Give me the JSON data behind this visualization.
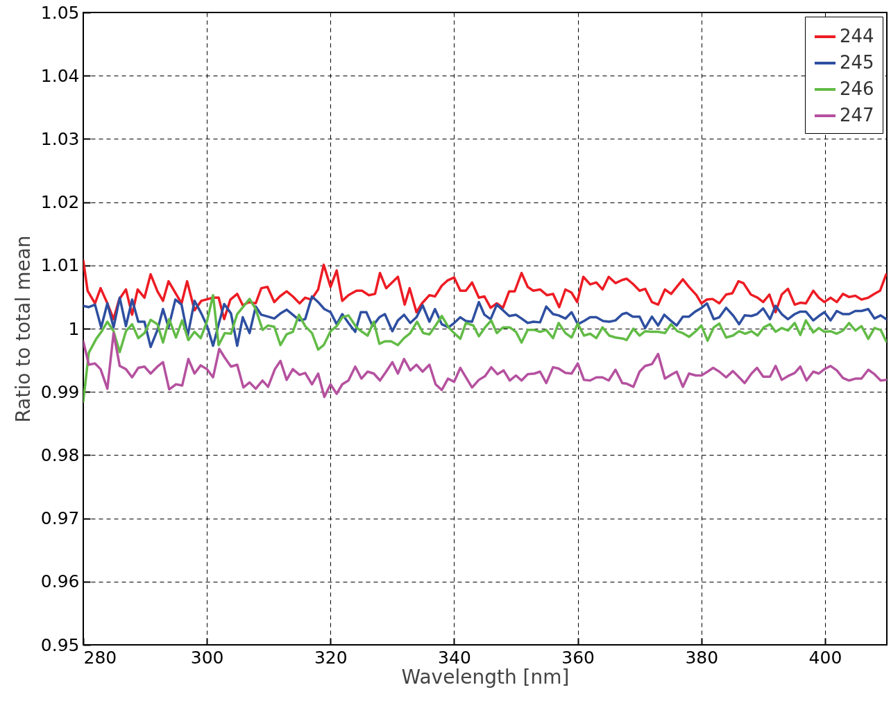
{
  "chart_data": {
    "type": "line",
    "xlabel": "Wavelength [nm]",
    "ylabel": "Ratio to total mean",
    "xlim": [
      280,
      410
    ],
    "xticks": [
      280,
      300,
      320,
      340,
      360,
      380,
      400
    ],
    "ylim": [
      0.95,
      1.05
    ],
    "yticks": [
      0.95,
      0.96,
      0.97,
      0.98,
      0.99,
      1,
      1.01,
      1.02,
      1.03,
      1.04,
      1.05
    ],
    "grid": true,
    "legend": "top right",
    "series": [
      {
        "name": "244",
        "color": "#ed1c24",
        "x": [
          280,
          280.7,
          281.9,
          282.8,
          283.9,
          284.9,
          285.8,
          286.9,
          287.9,
          288.8,
          289.9,
          290.9,
          292,
          292.9,
          293.8,
          295,
          295.9,
          296.8,
          298,
          299.1,
          301,
          301.9,
          302.8,
          303.8,
          304.9,
          305.8,
          306.8,
          307.9,
          308.8,
          309.8,
          310.9,
          311.8,
          312.9,
          313.9,
          315,
          315.9,
          316.9,
          318,
          318.9,
          320,
          321,
          321.9,
          322.9,
          324.2,
          325.1,
          326.2,
          327.2,
          328,
          329,
          330.9,
          332,
          332.8,
          333.9,
          334.8,
          336,
          336.9,
          338,
          338.9,
          340,
          341,
          341.9,
          342.9,
          344,
          344.9,
          345.9,
          346.9,
          347.9,
          348.9,
          349.8,
          350.9,
          351.9,
          352.8,
          353.9,
          355,
          356,
          357,
          358,
          359,
          359.9,
          360.9,
          362,
          363,
          364,
          365,
          366.1,
          367.2,
          367.9,
          368.9,
          370,
          370.9,
          372,
          373,
          374.1,
          375.1,
          376,
          377,
          378,
          379.2,
          380,
          380.9,
          381.8,
          382.9,
          384,
          385,
          386,
          386.8,
          388,
          389.1,
          390,
          391,
          392,
          393,
          394,
          395.1,
          396,
          396.9,
          398.1,
          399,
          399.9,
          400.9,
          401.9,
          402.9,
          403.9,
          404.9,
          405.9,
          407,
          408,
          408.9,
          409.9
        ],
        "values": [
          1.0108,
          1.006,
          1.004,
          1.0064,
          1.004,
          1.0015,
          1.0046,
          1.0062,
          1.0022,
          1.0062,
          1.0049,
          1.0086,
          1.0059,
          1.0044,
          1.0075,
          1.0055,
          1.004,
          1.0075,
          1.0029,
          1.0044,
          1.0049,
          1.0049,
          1.0015,
          1.0046,
          1.0055,
          1.0037,
          1.0042,
          1.004,
          1.0064,
          1.0066,
          1.0042,
          1.0051,
          1.0059,
          1.0051,
          1.004,
          1.0049,
          1.0046,
          1.0062,
          1.0101,
          1.0066,
          1.0092,
          1.0044,
          1.0053,
          1.006,
          1.006,
          1.0053,
          1.0055,
          1.0088,
          1.0064,
          1.0082,
          1.0038,
          1.0064,
          1.0026,
          1.004,
          1.0053,
          1.0051,
          1.0068,
          1.0076,
          1.0081,
          1.006,
          1.006,
          1.0073,
          1.0049,
          1.0051,
          1.0033,
          1.004,
          1.0033,
          1.0059,
          1.0059,
          1.0088,
          1.0066,
          1.006,
          1.0062,
          1.0053,
          1.0055,
          1.0034,
          1.0062,
          1.0057,
          1.0042,
          1.0082,
          1.007,
          1.0073,
          1.0062,
          1.0082,
          1.0072,
          1.0077,
          1.0079,
          1.0071,
          1.006,
          1.0063,
          1.0042,
          1.0038,
          1.0062,
          1.0055,
          1.0066,
          1.0078,
          1.0066,
          1.0053,
          1.004,
          1.0046,
          1.0047,
          1.004,
          1.0054,
          1.0056,
          1.0075,
          1.0072,
          1.0054,
          1.0049,
          1.0042,
          1.0054,
          1.0026,
          1.0054,
          1.0063,
          1.0038,
          1.0041,
          1.004,
          1.006,
          1.0049,
          1.0042,
          1.0049,
          1.0042,
          1.0055,
          1.005,
          1.0052,
          1.0046,
          1.0049,
          1.0055,
          1.006,
          1.0086
        ]
      },
      {
        "name": "245",
        "color": "#2e4fa0",
        "x": [
          280,
          280.9,
          281.9,
          282.9,
          283.9,
          284.9,
          285.9,
          286.9,
          287.9,
          288.9,
          289.9,
          290.9,
          292,
          292.9,
          293.8,
          294.9,
          295.9,
          296.9,
          298,
          299.1,
          300,
          301,
          301.9,
          302.8,
          303.9,
          304.9,
          305.8,
          306.9,
          307.9,
          308.8,
          309.9,
          310.9,
          311.9,
          312.9,
          313.9,
          315,
          315.9,
          317,
          318,
          319,
          320,
          321,
          321.9,
          322.9,
          324,
          324.9,
          325.8,
          326.8,
          327.9,
          328.8,
          330,
          330.9,
          331.9,
          332.9,
          333.9,
          334.9,
          336,
          336.9,
          338,
          339.1,
          340,
          341,
          341.9,
          342.9,
          344,
          344.9,
          345.9,
          346.9,
          347.9,
          348.9,
          350,
          350.9,
          351.9,
          352.8,
          353.9,
          354.9,
          356,
          356.9,
          358,
          359,
          360,
          361,
          362,
          363,
          364.1,
          365.1,
          366.1,
          367.2,
          367.9,
          368.9,
          370,
          370.9,
          372,
          373,
          374,
          375,
          376,
          377,
          378,
          379,
          379.9,
          380.9,
          382,
          382.9,
          384,
          385.2,
          386.1,
          387,
          388.1,
          389,
          390,
          391.1,
          392,
          393,
          394,
          395.1,
          396,
          396.9,
          398.1,
          399,
          399.9,
          400.9,
          401.9,
          402.9,
          403.9,
          404.9,
          405.9,
          407,
          408,
          409,
          409.9
        ],
        "values": [
          1.0036,
          1.0034,
          1.0038,
          1.0002,
          1.004,
          1.0002,
          1.0049,
          1.0004,
          1.0046,
          1.0011,
          1.0011,
          0.9971,
          0.9998,
          1.0031,
          1.0002,
          1.0046,
          1.0038,
          0.9989,
          1.0044,
          1.0024,
          1.0005,
          0.9973,
          1.0007,
          1.0039,
          1.0024,
          0.9973,
          1.0018,
          0.9993,
          1.0035,
          1.0022,
          1.0019,
          1.0016,
          1.0024,
          1.003,
          1.0022,
          1.0013,
          1.0015,
          1.0051,
          1.0042,
          1.0031,
          1.0026,
          1.0007,
          1.0023,
          1.0009,
          0.9995,
          1.0026,
          1.0026,
          1.0004,
          1.0018,
          1.0023,
          0.9996,
          1.0013,
          1.0022,
          1.0009,
          1.0018,
          1.0037,
          1.0011,
          1.0031,
          1.0007,
          1.0002,
          1.0009,
          1.0018,
          1.0012,
          1.0011,
          1.0042,
          1.0022,
          1.0015,
          1.0038,
          1.0029,
          1.002,
          1.0022,
          1.0016,
          1.0009,
          1.0011,
          1.001,
          1.0035,
          1.0023,
          1.0021,
          1.0016,
          1.0026,
          1.0007,
          1.0012,
          1.0018,
          1.0018,
          1.0012,
          1.0011,
          1.0013,
          1.0023,
          1.0025,
          1.0019,
          1.0019,
          1.0001,
          1.0019,
          1.0005,
          1.0022,
          1.0013,
          1.0005,
          1.0019,
          1.0019,
          1.0027,
          1.0032,
          1.004,
          1.0015,
          1.0018,
          1.0033,
          1.002,
          1.0007,
          1.0021,
          1.002,
          1.0023,
          1.0032,
          1.0015,
          1.0036,
          1.0023,
          1.0015,
          1.0023,
          1.0027,
          1.0027,
          1.0013,
          1.002,
          1.0026,
          1.0013,
          1.0028,
          1.0023,
          1.0023,
          1.0028,
          1.0028,
          1.0031,
          1.0016,
          1.0021,
          1.0015
        ]
      },
      {
        "name": "246",
        "color": "#62bb46",
        "x": [
          280,
          280.9,
          282.1,
          283,
          283.9,
          284.9,
          285.9,
          286.9,
          287.9,
          288.9,
          289.9,
          290.9,
          292,
          292.9,
          293.9,
          295,
          296,
          297,
          298,
          299,
          300,
          301,
          301.9,
          302.9,
          303.9,
          304.9,
          305.9,
          306.9,
          307.9,
          309,
          309.9,
          310.9,
          311.9,
          312.9,
          313.9,
          314.9,
          315.9,
          317,
          318,
          318.9,
          320,
          321,
          321.9,
          322.9,
          324.2,
          325.1,
          326,
          327,
          327.9,
          328.8,
          329.8,
          330.9,
          331.9,
          332.9,
          334,
          335,
          336,
          337,
          338,
          339.1,
          340,
          341,
          341.9,
          343.1,
          344,
          345,
          346,
          346.9,
          347.9,
          349,
          350,
          350.9,
          351.9,
          353,
          353.9,
          354.9,
          356,
          356.9,
          358,
          359,
          360,
          361,
          362,
          363,
          364,
          365.1,
          366.1,
          367.4,
          367.9,
          369,
          370,
          370.9,
          372,
          373,
          374.1,
          375.1,
          376.1,
          377,
          378,
          379.1,
          380,
          381,
          382,
          382.9,
          384,
          385.1,
          386.1,
          387.1,
          388.1,
          389.1,
          390.1,
          391.1,
          392,
          393,
          394,
          395.1,
          396,
          396.9,
          398.1,
          399,
          399.9,
          400.9,
          401.9,
          402.9,
          403.9,
          404.9,
          405.9,
          407,
          408,
          409,
          409.9
        ],
        "values": [
          0.9885,
          0.9962,
          0.9984,
          0.9996,
          1.0011,
          0.9996,
          0.9963,
          0.9996,
          1.0007,
          0.9985,
          0.9993,
          1.0014,
          1.0007,
          0.9978,
          1.0015,
          0.9986,
          1.0013,
          0.9982,
          0.9995,
          0.9985,
          1.0011,
          1.0053,
          0.9974,
          0.9993,
          0.9992,
          1.0023,
          1.0035,
          1.0047,
          1.0031,
          0.9998,
          1.0005,
          1.0003,
          0.9974,
          0.9991,
          0.9995,
          1.0022,
          1.0004,
          0.9993,
          0.9967,
          0.9974,
          0.9996,
          1.0004,
          1.0018,
          1.0021,
          1.0002,
          0.9995,
          0.9989,
          1.0011,
          0.9976,
          0.998,
          0.998,
          0.9974,
          0.9985,
          0.9993,
          1.0011,
          0.9993,
          0.9991,
          1.0005,
          1.002,
          1.0002,
          0.9993,
          0.9984,
          1.0009,
          1.0005,
          0.9988,
          1.0002,
          1.0013,
          0.9993,
          1.0002,
          1.0002,
          0.9995,
          0.9978,
          0.9998,
          0.9998,
          0.9995,
          0.9998,
          0.9985,
          1.0009,
          0.9993,
          0.9986,
          1.0008,
          0.9989,
          0.9992,
          0.9985,
          1.0002,
          0.9989,
          0.9986,
          0.9984,
          0.9982,
          1,
          0.9989,
          0.9996,
          0.9995,
          0.9995,
          0.9993,
          1.0007,
          0.9996,
          0.9993,
          0.9987,
          0.9996,
          1.0005,
          0.9981,
          1.0002,
          1.0008,
          0.9986,
          0.9989,
          0.9996,
          0.9992,
          0.9996,
          0.9989,
          1.0002,
          1.0007,
          0.9995,
          1.0001,
          0.9997,
          1.0009,
          0.999,
          1.0013,
          0.9994,
          1.0001,
          0.9995,
          0.9996,
          0.9992,
          0.9997,
          1.0009,
          0.9997,
          1.0004,
          0.9984,
          1.0001,
          0.9998,
          0.998
        ]
      },
      {
        "name": "247",
        "color": "#b5519f",
        "x": [
          280,
          280.9,
          281.9,
          282.8,
          283.9,
          284.9,
          285.9,
          286.9,
          287.9,
          288.9,
          289.9,
          290.9,
          292,
          292.9,
          293.9,
          295,
          296,
          297,
          298,
          299,
          300,
          301,
          302,
          302.9,
          303.9,
          304.9,
          305.9,
          306.9,
          307.9,
          309,
          309.9,
          311,
          311.9,
          312.9,
          313.9,
          315,
          315.9,
          317,
          318,
          319,
          320,
          321,
          321.9,
          322.9,
          324,
          325,
          326,
          327,
          328,
          329,
          330,
          330.9,
          331.9,
          332.9,
          333.9,
          334.9,
          336,
          337,
          338,
          339,
          340,
          341,
          341.9,
          342.9,
          344,
          345,
          346,
          347,
          348,
          349,
          350,
          350.9,
          351.9,
          353,
          353.9,
          354.9,
          356,
          356.9,
          358,
          359,
          360,
          361,
          362,
          363,
          364,
          365,
          366.1,
          367.2,
          367.9,
          369,
          370,
          370.9,
          372,
          373,
          374.1,
          375.1,
          376,
          377,
          378,
          379.1,
          380,
          381,
          381.9,
          382.9,
          384,
          385.1,
          386.1,
          387,
          388.1,
          389,
          390,
          391.1,
          392,
          393,
          394,
          395.1,
          396,
          397,
          398.1,
          399,
          399.9,
          400.9,
          401.9,
          402.9,
          403.9,
          404.9,
          405.9,
          407,
          408,
          409,
          409.9
        ],
        "values": [
          0.998,
          0.9943,
          0.9945,
          0.9936,
          0.9905,
          0.9993,
          0.9941,
          0.9936,
          0.9923,
          0.9938,
          0.994,
          0.9929,
          0.994,
          0.9947,
          0.9904,
          0.9912,
          0.991,
          0.9952,
          0.9929,
          0.9942,
          0.9936,
          0.9923,
          0.9968,
          0.9954,
          0.994,
          0.9943,
          0.9907,
          0.9915,
          0.9905,
          0.9918,
          0.9908,
          0.9936,
          0.9949,
          0.9919,
          0.9936,
          0.9927,
          0.993,
          0.9912,
          0.9929,
          0.9892,
          0.9912,
          0.9897,
          0.9912,
          0.9918,
          0.994,
          0.9921,
          0.9932,
          0.9929,
          0.9918,
          0.9932,
          0.9947,
          0.9929,
          0.9952,
          0.9934,
          0.9943,
          0.9932,
          0.9943,
          0.9912,
          0.9903,
          0.9921,
          0.9916,
          0.9938,
          0.9923,
          0.9907,
          0.9919,
          0.9925,
          0.9939,
          0.9928,
          0.9934,
          0.9918,
          0.9926,
          0.9918,
          0.9928,
          0.9929,
          0.9932,
          0.9914,
          0.9939,
          0.9937,
          0.993,
          0.9929,
          0.9945,
          0.9919,
          0.9918,
          0.9923,
          0.9923,
          0.9918,
          0.9935,
          0.9914,
          0.9913,
          0.9908,
          0.9932,
          0.9941,
          0.9944,
          0.996,
          0.9921,
          0.9927,
          0.9932,
          0.9908,
          0.9929,
          0.9926,
          0.9926,
          0.9932,
          0.9938,
          0.9932,
          0.9923,
          0.9933,
          0.9923,
          0.9914,
          0.9929,
          0.9938,
          0.9924,
          0.9924,
          0.9941,
          0.9919,
          0.9925,
          0.993,
          0.994,
          0.9918,
          0.9932,
          0.9929,
          0.9936,
          0.9941,
          0.9934,
          0.9922,
          0.9918,
          0.9921,
          0.9921,
          0.9935,
          0.9928,
          0.9918,
          0.9919
        ]
      }
    ]
  }
}
